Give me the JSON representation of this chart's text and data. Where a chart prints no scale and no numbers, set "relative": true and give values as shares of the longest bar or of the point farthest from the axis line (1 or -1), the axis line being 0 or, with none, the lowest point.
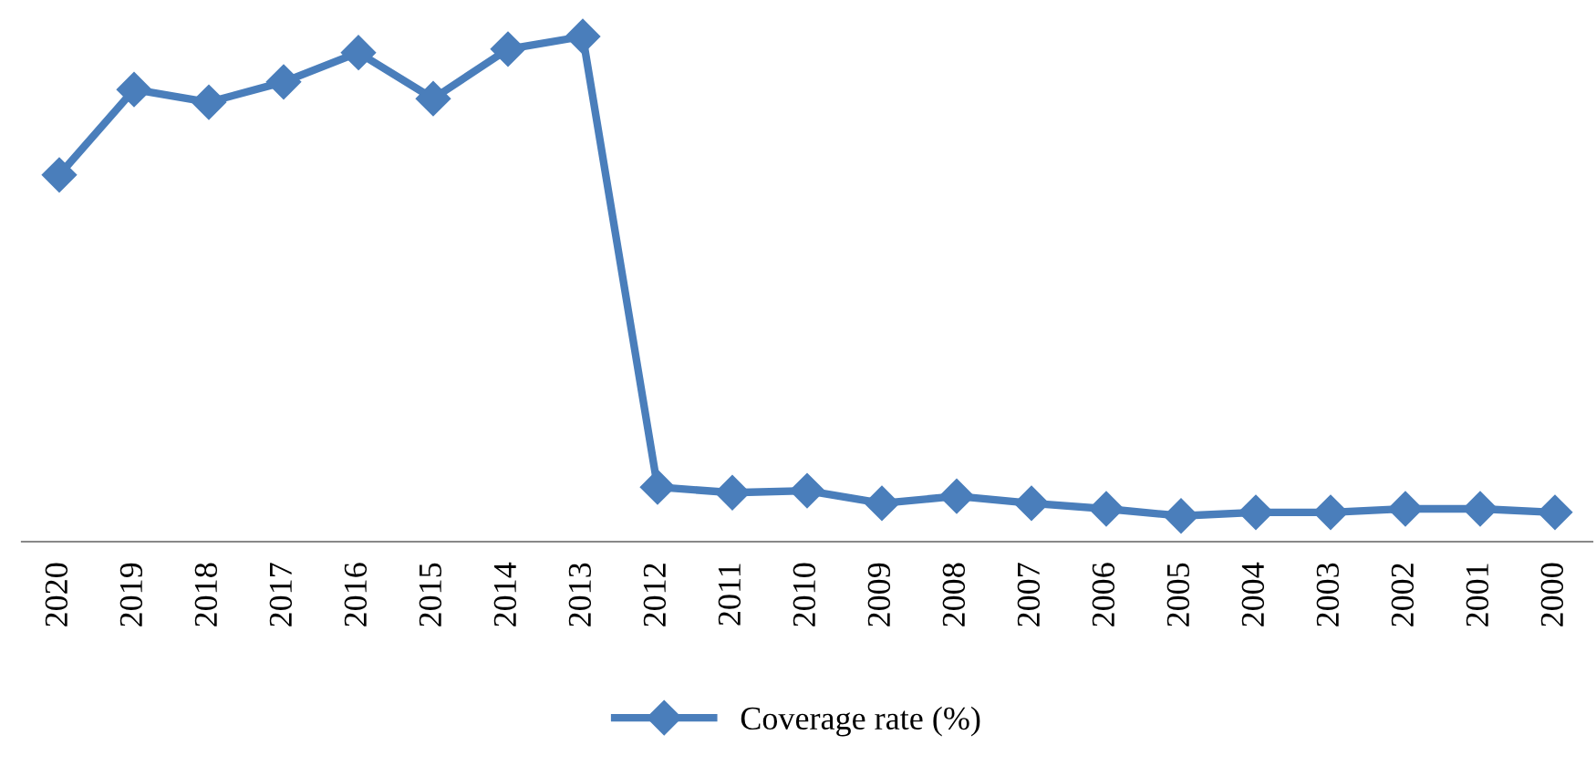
{
  "chart_data": {
    "type": "line",
    "relative": true,
    "categories": [
      "2020",
      "2019",
      "2018",
      "2017",
      "2016",
      "2015",
      "2014",
      "2013",
      "2012",
      "2011",
      "2010",
      "2009",
      "2008",
      "2007",
      "2006",
      "2005",
      "2004",
      "2003",
      "2002",
      "2001",
      "2000"
    ],
    "series": [
      {
        "name": "Coverage rate (%)",
        "color": "#4a7ebb",
        "values": [
          0.726,
          0.895,
          0.87,
          0.91,
          0.968,
          0.877,
          0.975,
          1.0,
          0.108,
          0.097,
          0.101,
          0.076,
          0.09,
          0.076,
          0.065,
          0.051,
          0.058,
          0.058,
          0.065,
          0.065,
          0.058
        ]
      }
    ],
    "marker": "diamond",
    "line_style": "solid",
    "legend": "bottom",
    "grid": false
  }
}
